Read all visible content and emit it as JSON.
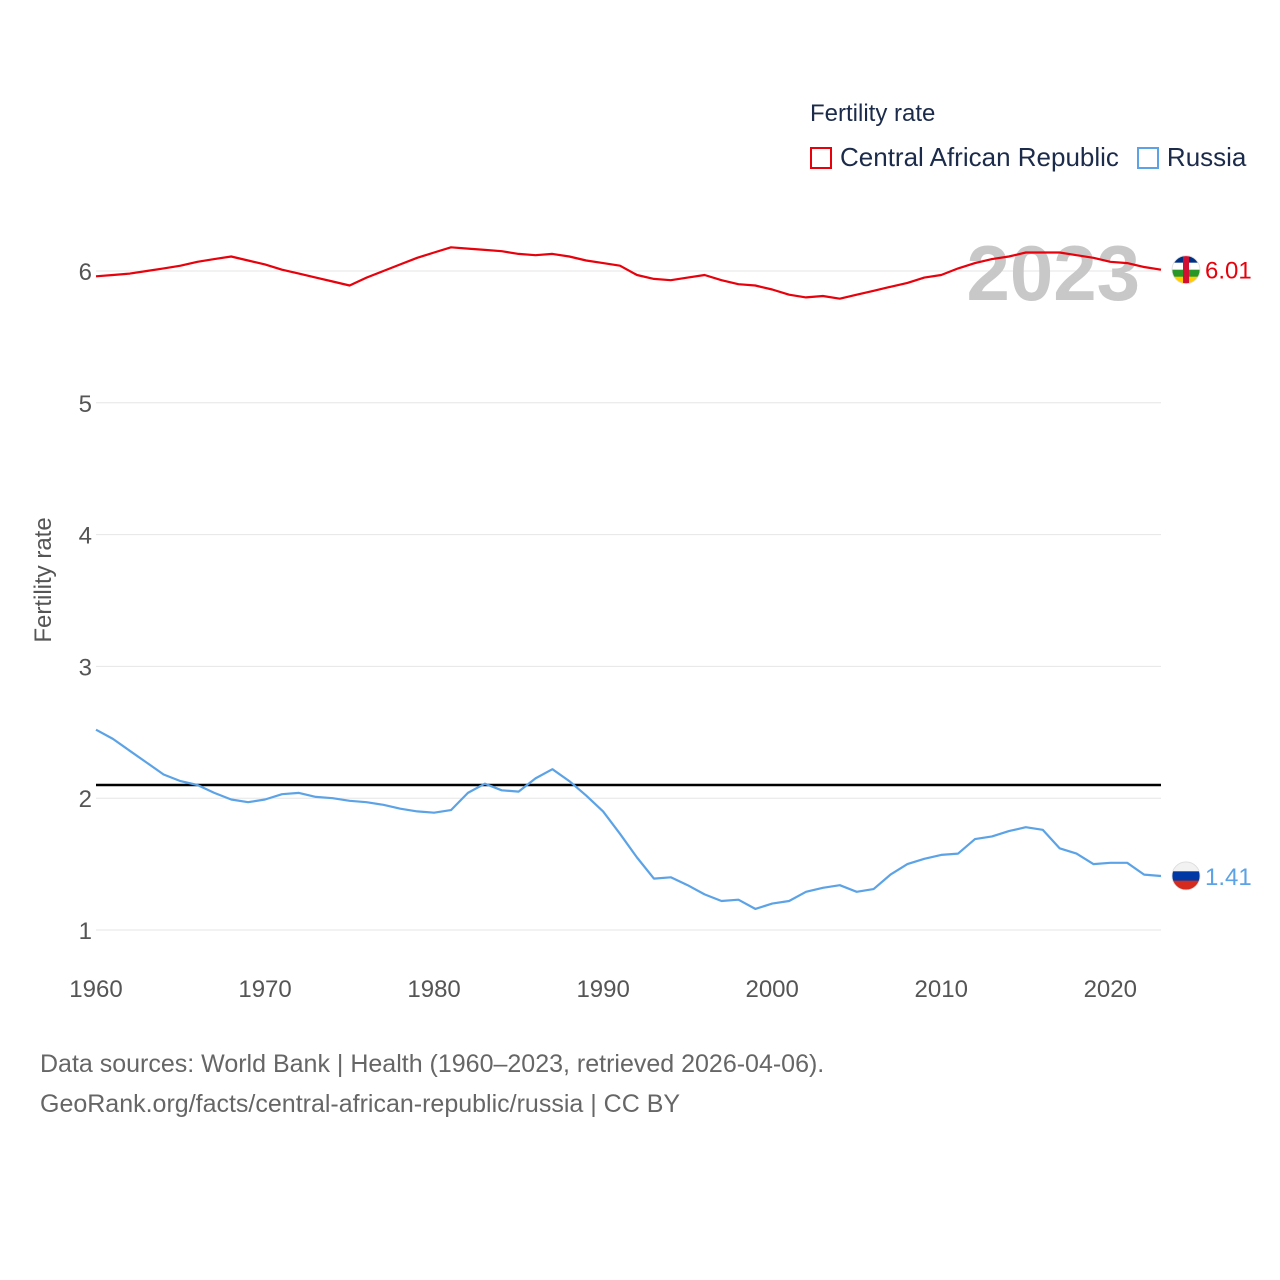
{
  "chart_data": {
    "type": "line",
    "legend_title": "Fertility rate",
    "ylabel": "Fertility rate",
    "xlabel": "",
    "year_label": "2023",
    "xlim": [
      1960,
      2023
    ],
    "ylim": [
      1,
      6
    ],
    "x_ticks": [
      1960,
      1970,
      1980,
      1990,
      2000,
      2010,
      2020
    ],
    "y_ticks": [
      1,
      2,
      3,
      4,
      5,
      6
    ],
    "reference_line": {
      "value": 2.1,
      "color": "#000000"
    },
    "x": [
      1960,
      1961,
      1962,
      1963,
      1964,
      1965,
      1966,
      1967,
      1968,
      1969,
      1970,
      1971,
      1972,
      1973,
      1974,
      1975,
      1976,
      1977,
      1978,
      1979,
      1980,
      1981,
      1982,
      1983,
      1984,
      1985,
      1986,
      1987,
      1988,
      1989,
      1990,
      1991,
      1992,
      1993,
      1994,
      1995,
      1996,
      1997,
      1998,
      1999,
      2000,
      2001,
      2002,
      2003,
      2004,
      2005,
      2006,
      2007,
      2008,
      2009,
      2010,
      2011,
      2012,
      2013,
      2014,
      2015,
      2016,
      2017,
      2018,
      2019,
      2020,
      2021,
      2022,
      2023
    ],
    "series": [
      {
        "name": "Central African Republic",
        "color": "#e8000b",
        "flag": "central-african-republic-flag-icon",
        "end_label": "6.01",
        "values": [
          5.96,
          5.97,
          5.98,
          6.0,
          6.02,
          6.04,
          6.07,
          6.09,
          6.11,
          6.08,
          6.05,
          6.01,
          5.98,
          5.95,
          5.92,
          5.89,
          5.95,
          6.0,
          6.05,
          6.1,
          6.14,
          6.18,
          6.17,
          6.16,
          6.15,
          6.13,
          6.12,
          6.13,
          6.11,
          6.08,
          6.06,
          6.04,
          5.97,
          5.94,
          5.93,
          5.95,
          5.97,
          5.93,
          5.9,
          5.89,
          5.86,
          5.82,
          5.8,
          5.81,
          5.79,
          5.82,
          5.85,
          5.88,
          5.91,
          5.95,
          5.97,
          6.02,
          6.06,
          6.09,
          6.11,
          6.14,
          6.14,
          6.14,
          6.12,
          6.1,
          6.07,
          6.06,
          6.03,
          6.01
        ]
      },
      {
        "name": "Russia",
        "color": "#5ba3e6",
        "flag": "russia-flag-icon",
        "end_label": "1.41",
        "values": [
          2.52,
          2.45,
          2.36,
          2.27,
          2.18,
          2.13,
          2.1,
          2.04,
          1.99,
          1.97,
          1.99,
          2.03,
          2.04,
          2.01,
          2.0,
          1.98,
          1.97,
          1.95,
          1.92,
          1.9,
          1.89,
          1.91,
          2.04,
          2.11,
          2.06,
          2.05,
          2.15,
          2.22,
          2.13,
          2.02,
          1.9,
          1.73,
          1.55,
          1.39,
          1.4,
          1.34,
          1.27,
          1.22,
          1.23,
          1.16,
          1.2,
          1.22,
          1.29,
          1.32,
          1.34,
          1.29,
          1.31,
          1.42,
          1.5,
          1.54,
          1.57,
          1.58,
          1.69,
          1.71,
          1.75,
          1.78,
          1.76,
          1.62,
          1.58,
          1.5,
          1.51,
          1.51,
          1.42,
          1.41
        ]
      }
    ]
  },
  "footer": {
    "line1": "Data sources: World Bank | Health (1960–2023, retrieved 2026-04-06).",
    "line2": "GeoRank.org/facts/central-african-republic/russia | CC BY"
  }
}
